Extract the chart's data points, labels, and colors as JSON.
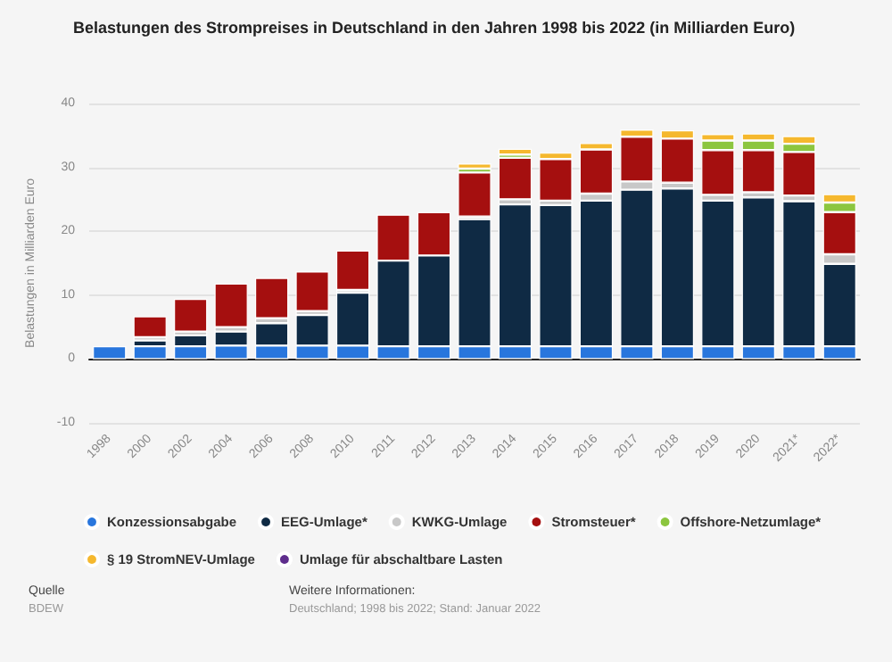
{
  "chart_data": {
    "type": "bar",
    "stacked": true,
    "title": "Belastungen des Strompreises in Deutschland in den Jahren 1998 bis 2022 (in Milliarden Euro)",
    "ylabel": "Belastungen in Milliarden Euro",
    "categories": [
      "1998",
      "2000",
      "2002",
      "2004",
      "2006",
      "2008",
      "2010",
      "2011",
      "2012",
      "2013",
      "2014",
      "2015",
      "2016",
      "2017",
      "2018",
      "2019",
      "2020",
      "2021*",
      "2022*"
    ],
    "series": [
      {
        "name": "Konzessionsabgabe",
        "color": "#2876dd",
        "values": [
          2.0,
          2.0,
          2.0,
          2.1,
          2.1,
          2.1,
          2.1,
          2.0,
          2.0,
          2.0,
          2.0,
          2.0,
          2.0,
          2.0,
          2.0,
          2.0,
          2.0,
          2.0,
          2.0
        ]
      },
      {
        "name": "EEG-Umlage*",
        "color": "#0f2a44",
        "values": [
          null,
          0.9,
          1.7,
          2.2,
          3.5,
          4.8,
          8.3,
          13.4,
          14.2,
          19.9,
          22.2,
          22.1,
          22.8,
          24.5,
          24.7,
          22.8,
          23.3,
          22.7,
          12.9
        ]
      },
      {
        "name": "KWKG-Umlage",
        "color": "#c8c8c8",
        "values": [
          null,
          0.5,
          0.6,
          0.7,
          0.8,
          0.6,
          0.4,
          null,
          null,
          0.4,
          0.8,
          0.7,
          1.1,
          1.3,
          0.9,
          0.9,
          0.8,
          0.9,
          1.5
        ]
      },
      {
        "name": "Stromsteuer*",
        "color": "#a50f0f",
        "values": [
          null,
          3.3,
          5.1,
          6.8,
          6.3,
          6.2,
          6.2,
          7.2,
          6.8,
          6.9,
          6.5,
          6.5,
          6.9,
          7.0,
          6.9,
          7.0,
          6.6,
          6.8,
          6.6
        ]
      },
      {
        "name": "Offshore-Netzumlage*",
        "color": "#8cc63f",
        "values": [
          null,
          null,
          null,
          null,
          null,
          null,
          null,
          null,
          null,
          0.6,
          0.5,
          null,
          null,
          null,
          null,
          1.5,
          1.5,
          1.3,
          1.5
        ]
      },
      {
        "name": "§ 19 StromNEV-Umlage",
        "color": "#f5b82e",
        "values": [
          null,
          null,
          null,
          null,
          null,
          null,
          null,
          null,
          null,
          0.8,
          0.9,
          1.0,
          1.0,
          1.1,
          1.3,
          1.0,
          1.1,
          1.2,
          1.3
        ]
      },
      {
        "name": "Umlage für abschaltbare Lasten",
        "color": "#5e2d8c",
        "values": [
          null,
          null,
          null,
          null,
          null,
          null,
          null,
          null,
          null,
          null,
          null,
          null,
          null,
          null,
          null,
          null,
          null,
          null,
          null
        ]
      }
    ],
    "ylim": [
      -10,
      40
    ],
    "yticks": [
      -10,
      0,
      10,
      20,
      30,
      40
    ],
    "grid": "y",
    "legend": "bottom",
    "annotations": [
      "Quelle",
      "BDEW",
      "Weitere Informationen:",
      "Deutschland; 1998 bis 2022; Stand: Januar 2022"
    ]
  }
}
